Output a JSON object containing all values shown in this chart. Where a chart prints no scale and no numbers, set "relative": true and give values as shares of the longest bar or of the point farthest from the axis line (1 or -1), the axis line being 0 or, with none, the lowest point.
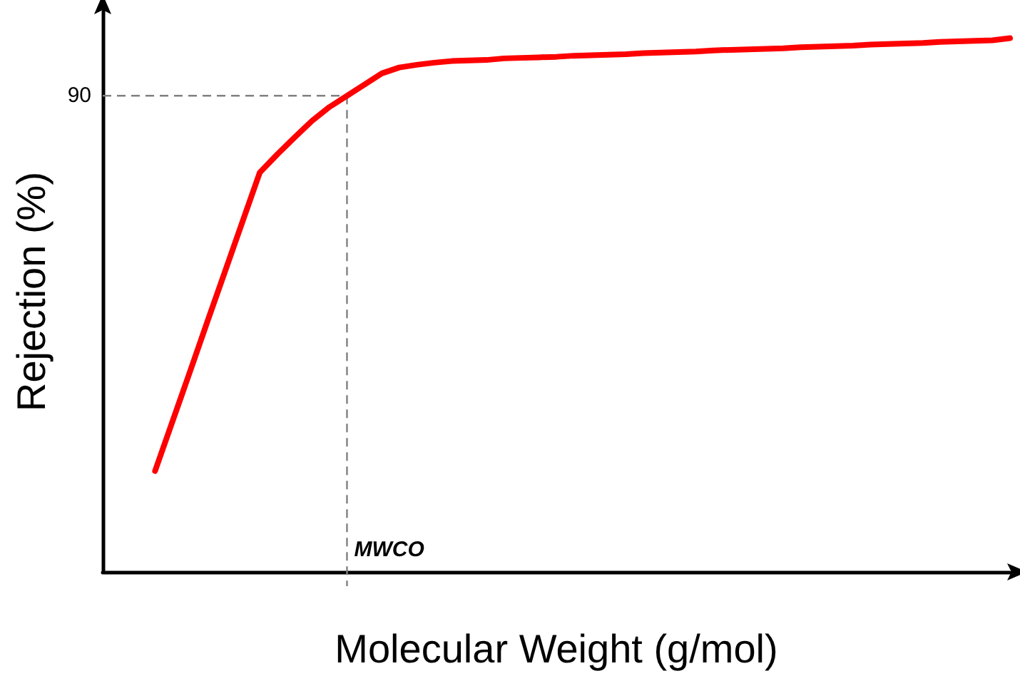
{
  "chart_data": {
    "type": "line",
    "relative": true,
    "xlabel": "Molecular Weight (g/mol)",
    "ylabel": "Rejection (%)",
    "categories": [
      null,
      null,
      null,
      null,
      null,
      null,
      null,
      null,
      null,
      null,
      null,
      null,
      null,
      null,
      null,
      null,
      null,
      null,
      null,
      null,
      null,
      null,
      null,
      null,
      null,
      null,
      null,
      null,
      null,
      null,
      null,
      null,
      null,
      null,
      null,
      null,
      null,
      null,
      null,
      null,
      null,
      null,
      null,
      null,
      null,
      null,
      null,
      null,
      null,
      null,
      null,
      null,
      null
    ],
    "grid": false,
    "marker": "none",
    "line_style": "solid",
    "series": [
      {
        "color": "#ff0000",
        "values": [
          null,
          null,
          null,
          0.189,
          0.282,
          0.375,
          0.469,
          0.562,
          0.655,
          0.748,
          0.782,
          0.814,
          0.845,
          0.871,
          0.892,
          0.913,
          0.934,
          0.945,
          0.95,
          0.954,
          0.957,
          0.958,
          0.959,
          0.962,
          0.963,
          0.964,
          0.965,
          0.967,
          0.968,
          0.969,
          0.97,
          0.972,
          0.973,
          0.974,
          0.975,
          0.977,
          0.978,
          0.979,
          0.98,
          0.981,
          0.983,
          0.984,
          0.985,
          0.986,
          0.988,
          0.989,
          0.99,
          0.991,
          0.993,
          0.994,
          0.995,
          0.996,
          1
        ]
      }
    ],
    "ref_lines": [
      {
        "axis": "y",
        "value": 0.892,
        "color": "#808080",
        "line_style": "dashed"
      }
    ],
    "annotations": [
      "90",
      "MWCO"
    ]
  }
}
